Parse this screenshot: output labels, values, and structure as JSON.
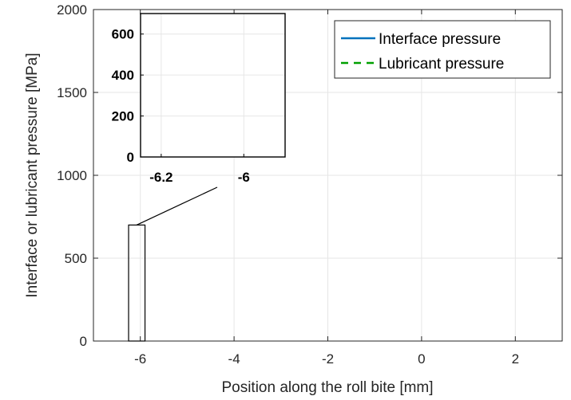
{
  "chart_data": {
    "type": "line",
    "xlabel": "Position along the roll bite [mm]",
    "ylabel": "Interface or lubricant pressure [MPa]",
    "xlim": [
      -7,
      3
    ],
    "ylim": [
      0,
      2000
    ],
    "xticks": [
      "-6",
      "-4",
      "-2",
      "0",
      "2"
    ],
    "xtick_values": [
      -6,
      -4,
      -2,
      0,
      2
    ],
    "yticks": [
      "0",
      "500",
      "1000",
      "1500",
      "2000"
    ],
    "ytick_values": [
      0,
      500,
      1000,
      1500,
      2000
    ],
    "grid": true,
    "legend_position": "top-right",
    "series": [
      {
        "name": "Interface pressure",
        "color": "#0072BD",
        "line_style": "solid",
        "x": [],
        "y": []
      },
      {
        "name": "Lubricant pressure",
        "color": "#00A000",
        "line_style": "dashed",
        "x": [],
        "y": []
      }
    ],
    "zoom_region": {
      "xlim": [
        -6.25,
        -5.9
      ],
      "ylim": [
        0,
        700
      ]
    },
    "inset": {
      "xlim": [
        -6.25,
        -5.9
      ],
      "ylim": [
        0,
        700
      ],
      "xticks": [
        "-6.2",
        "-6"
      ],
      "xtick_values": [
        -6.2,
        -6
      ],
      "yticks": [
        "0",
        "200",
        "400",
        "600"
      ],
      "ytick_values": [
        0,
        200,
        400,
        600
      ],
      "grid": true
    }
  }
}
